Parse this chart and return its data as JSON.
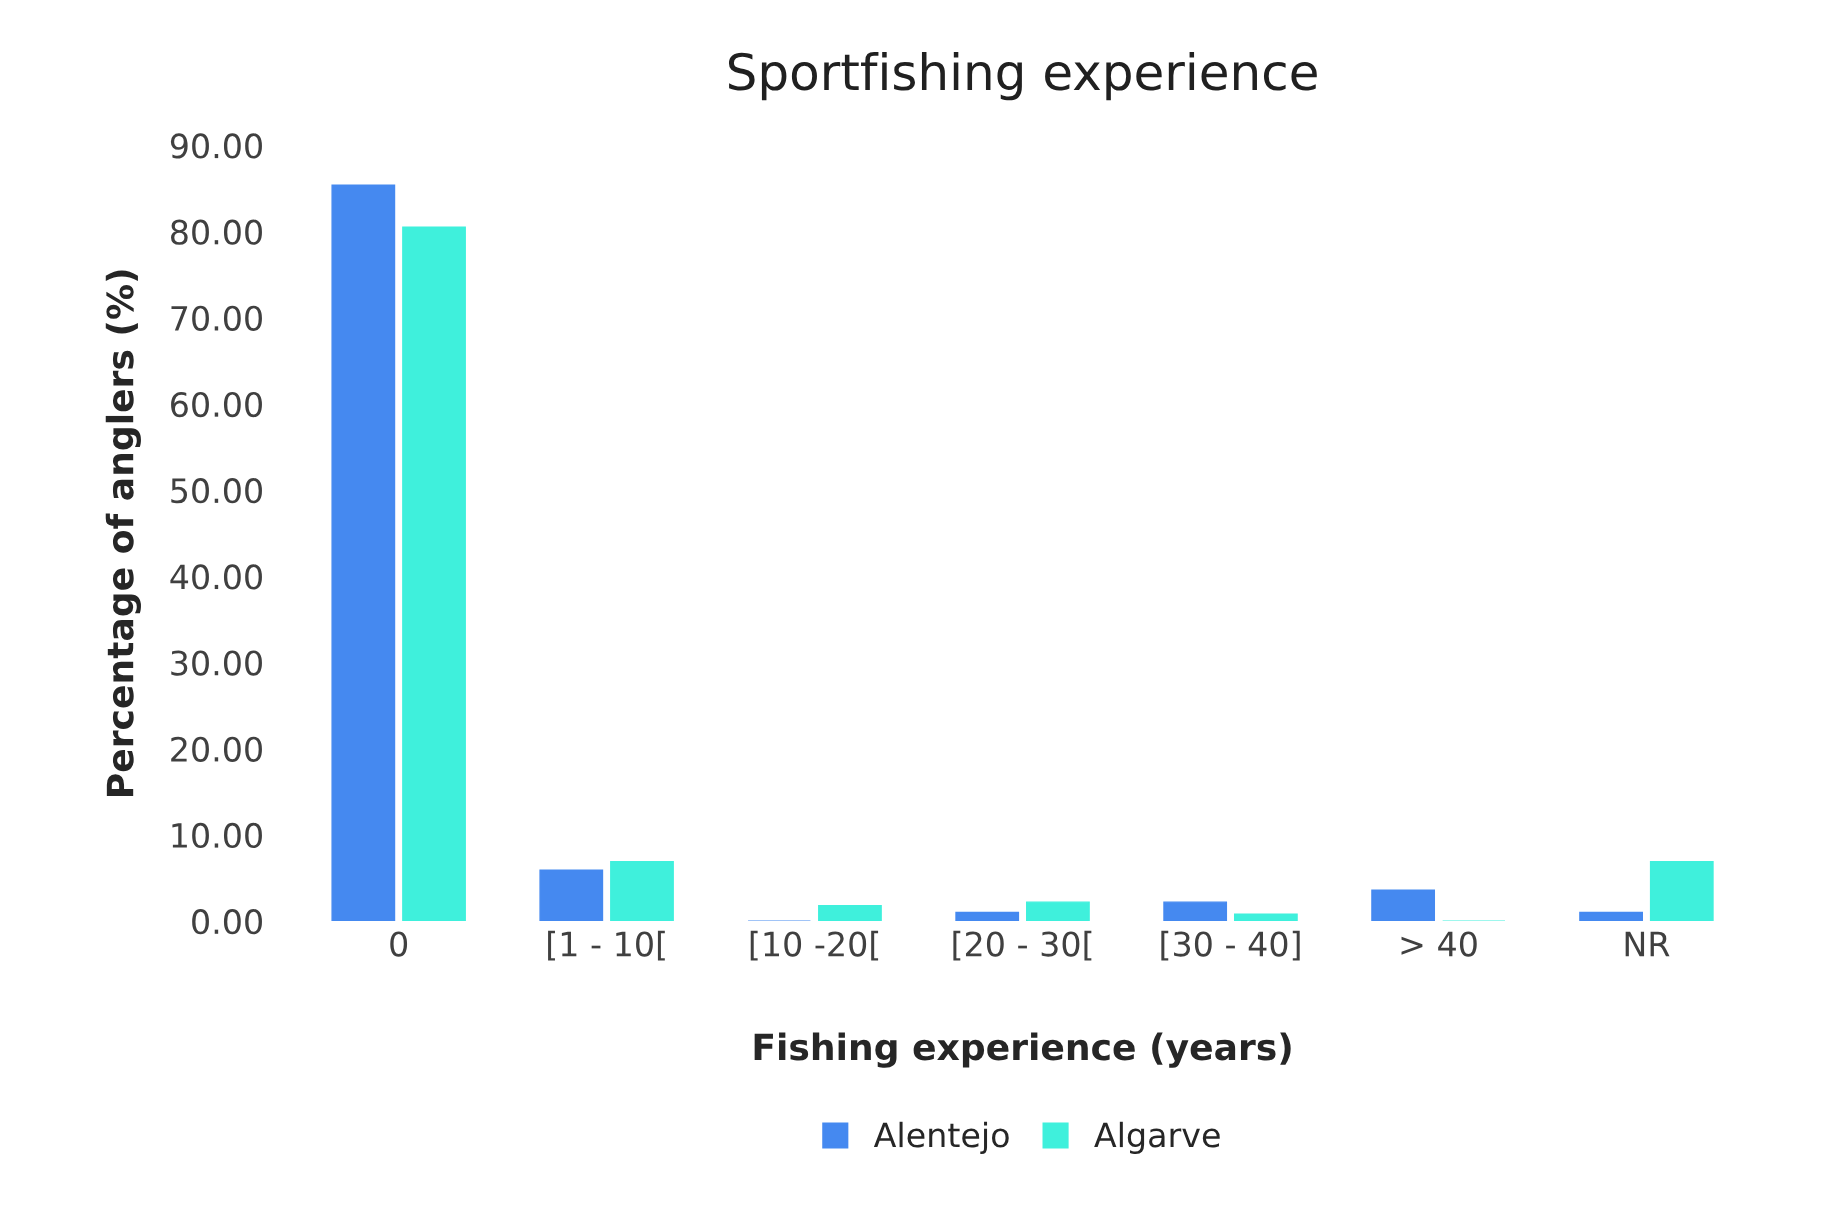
{
  "chart_data": {
    "type": "bar",
    "title": "Sportfishing experience",
    "xlabel": "Fishing experience (years)",
    "ylabel": "Percentage of anglers (%)",
    "categories": [
      "0",
      "[1 - 10[",
      "[10 -20[",
      "[20 - 30[",
      "[30 - 40]",
      "> 40",
      "NR"
    ],
    "series": [
      {
        "name": "Alentejo",
        "color": "#4589f0",
        "values": [
          85.4,
          5.9,
          0,
          1.0,
          2.2,
          3.6,
          1.0
        ]
      },
      {
        "name": "Algarve",
        "color": "#3ff0dc",
        "values": [
          80.5,
          6.9,
          1.8,
          2.2,
          0.8,
          0,
          6.9
        ]
      }
    ],
    "ylim": [
      0,
      90
    ],
    "yticks": [
      {
        "value": 0,
        "label": "0.00"
      },
      {
        "value": 10,
        "label": "10.00"
      },
      {
        "value": 20,
        "label": "20.00"
      },
      {
        "value": 30,
        "label": "30.00"
      },
      {
        "value": 40,
        "label": "40.00"
      },
      {
        "value": 50,
        "label": "50.00"
      },
      {
        "value": 60,
        "label": "60.00"
      },
      {
        "value": 70,
        "label": "70.00"
      },
      {
        "value": 80,
        "label": "80.00"
      },
      {
        "value": 90,
        "label": "90.00"
      }
    ],
    "grid": false,
    "legend": "bottom"
  }
}
